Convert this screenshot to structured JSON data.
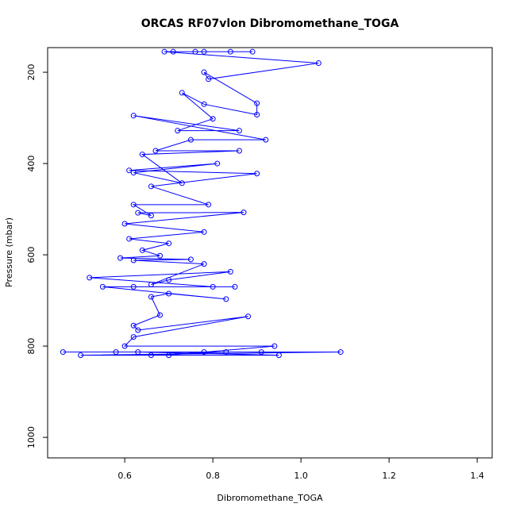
{
  "chart_data": {
    "type": "line",
    "title": "ORCAS RF07vlon Dibromomethane_TOGA",
    "x_label": "Dibromomethane_TOGA",
    "y_label": "Pressure (mbar)",
    "color": "#0000ff",
    "markers": true,
    "x": [
      0.46,
      1.09,
      0.5,
      0.95,
      0.63,
      0.91,
      0.58,
      0.83,
      0.66,
      0.78,
      0.7,
      0.94,
      0.6,
      0.62,
      0.88,
      0.63,
      0.62,
      0.68,
      0.66,
      0.7,
      0.83,
      0.55,
      0.85,
      0.62,
      0.8,
      0.52,
      0.84,
      0.7,
      0.66,
      0.78,
      0.62,
      0.75,
      0.59,
      0.68,
      0.64,
      0.7,
      0.61,
      0.78,
      0.6,
      0.87,
      0.63,
      0.66,
      0.62,
      0.79,
      0.66,
      0.9,
      0.61,
      0.81,
      0.62,
      0.73,
      0.64,
      0.86,
      0.67,
      0.75,
      0.92,
      0.62,
      0.86,
      0.72,
      0.8,
      0.73,
      0.78,
      0.9,
      0.9,
      0.78,
      0.79,
      1.04,
      0.69,
      0.71,
      0.78,
      0.84,
      0.89,
      0.76
    ],
    "values": [
      813,
      813,
      820,
      820,
      813,
      813,
      813,
      813,
      820,
      813,
      820,
      800,
      800,
      780,
      735,
      765,
      755,
      732,
      692,
      685,
      697,
      670,
      670,
      670,
      670,
      650,
      637,
      655,
      665,
      620,
      612,
      610,
      607,
      602,
      590,
      575,
      565,
      550,
      532,
      507,
      508,
      514,
      490,
      490,
      450,
      422,
      415,
      400,
      420,
      443,
      380,
      372,
      372,
      348,
      348,
      295,
      328,
      328,
      302,
      245,
      270,
      293,
      268,
      200,
      215,
      180,
      155,
      155,
      155,
      155,
      155,
      155
    ],
    "xlim": [
      0.425,
      1.434
    ],
    "ylim": [
      1045,
      146
    ],
    "xticks": [
      0.6,
      0.8,
      {
        "value": 1,
        "label": "1.0"
      },
      1.2,
      1.4
    ],
    "yticks": [
      200,
      400,
      600,
      800,
      1000
    ]
  }
}
